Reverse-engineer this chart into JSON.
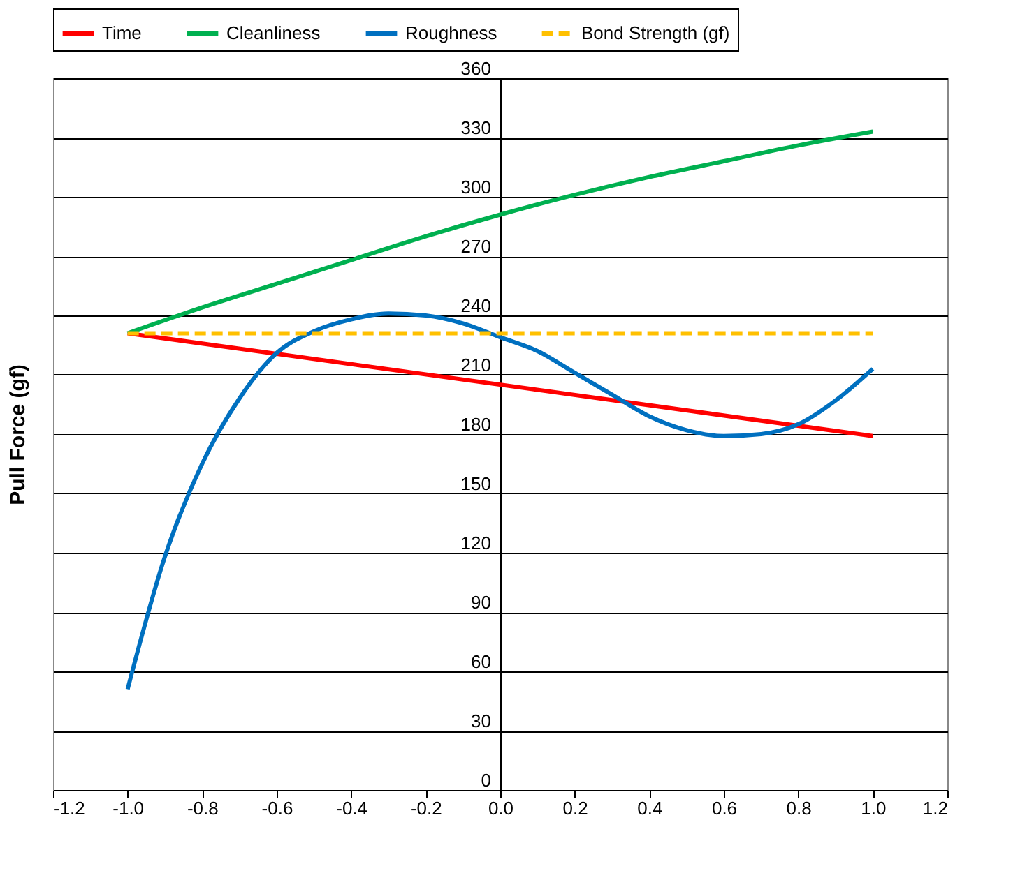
{
  "chart_data": {
    "type": "line",
    "ylabel": "Pull Force (gf)",
    "xlim": [
      -1.2,
      1.2
    ],
    "xticks": [
      {
        "value": -1.2,
        "label": "-1.2"
      },
      {
        "value": -1.0,
        "label": "-1.0"
      },
      {
        "value": -0.8,
        "label": "-0.8"
      },
      {
        "value": -0.6,
        "label": "-0.6"
      },
      {
        "value": -0.4,
        "label": "-0.4"
      },
      {
        "value": -0.2,
        "label": "-0.2"
      },
      {
        "value": 0,
        "label": "0.0"
      },
      0.2,
      0.4,
      0.6,
      0.8,
      {
        "value": 1.0,
        "label": "1.0"
      },
      1.2
    ],
    "ylim": [
      0,
      360
    ],
    "yticks": [
      0,
      30,
      60,
      90,
      120,
      150,
      180,
      210,
      240,
      270,
      300,
      330,
      360
    ],
    "grid": "y",
    "legend": "top",
    "marker": "none",
    "series": [
      {
        "name": "Time",
        "color": "#ff0000",
        "x": [
          -1,
          1
        ],
        "values": [
          231,
          179
        ]
      },
      {
        "name": "Cleanliness",
        "color": "#00b050",
        "x": [
          -1,
          -0.8,
          -0.6,
          -0.4,
          -0.2,
          0,
          0.2,
          0.4,
          0.6,
          0.8,
          1
        ],
        "values": [
          231,
          244,
          256,
          268,
          280,
          291,
          301,
          310,
          318,
          326,
          333
        ]
      },
      {
        "name": "Roughness",
        "color": "#0070c0",
        "x": [
          -1,
          -0.9,
          -0.8,
          -0.7,
          -0.6,
          -0.5,
          -0.4,
          -0.3,
          -0.2,
          -0.1,
          0,
          0.1,
          0.2,
          0.3,
          0.4,
          0.5,
          0.6,
          0.7,
          0.8,
          0.9,
          1
        ],
        "values": [
          51,
          118,
          165,
          198,
          221,
          232,
          238,
          241,
          240,
          236,
          229,
          222,
          211,
          200,
          189,
          182,
          179,
          180,
          185,
          197,
          213
        ]
      },
      {
        "name": "Bond Strength (gf)",
        "color": "#ffc000",
        "line_style": "dashed",
        "x": [
          -1,
          1
        ],
        "values": [
          231,
          231
        ]
      }
    ]
  }
}
